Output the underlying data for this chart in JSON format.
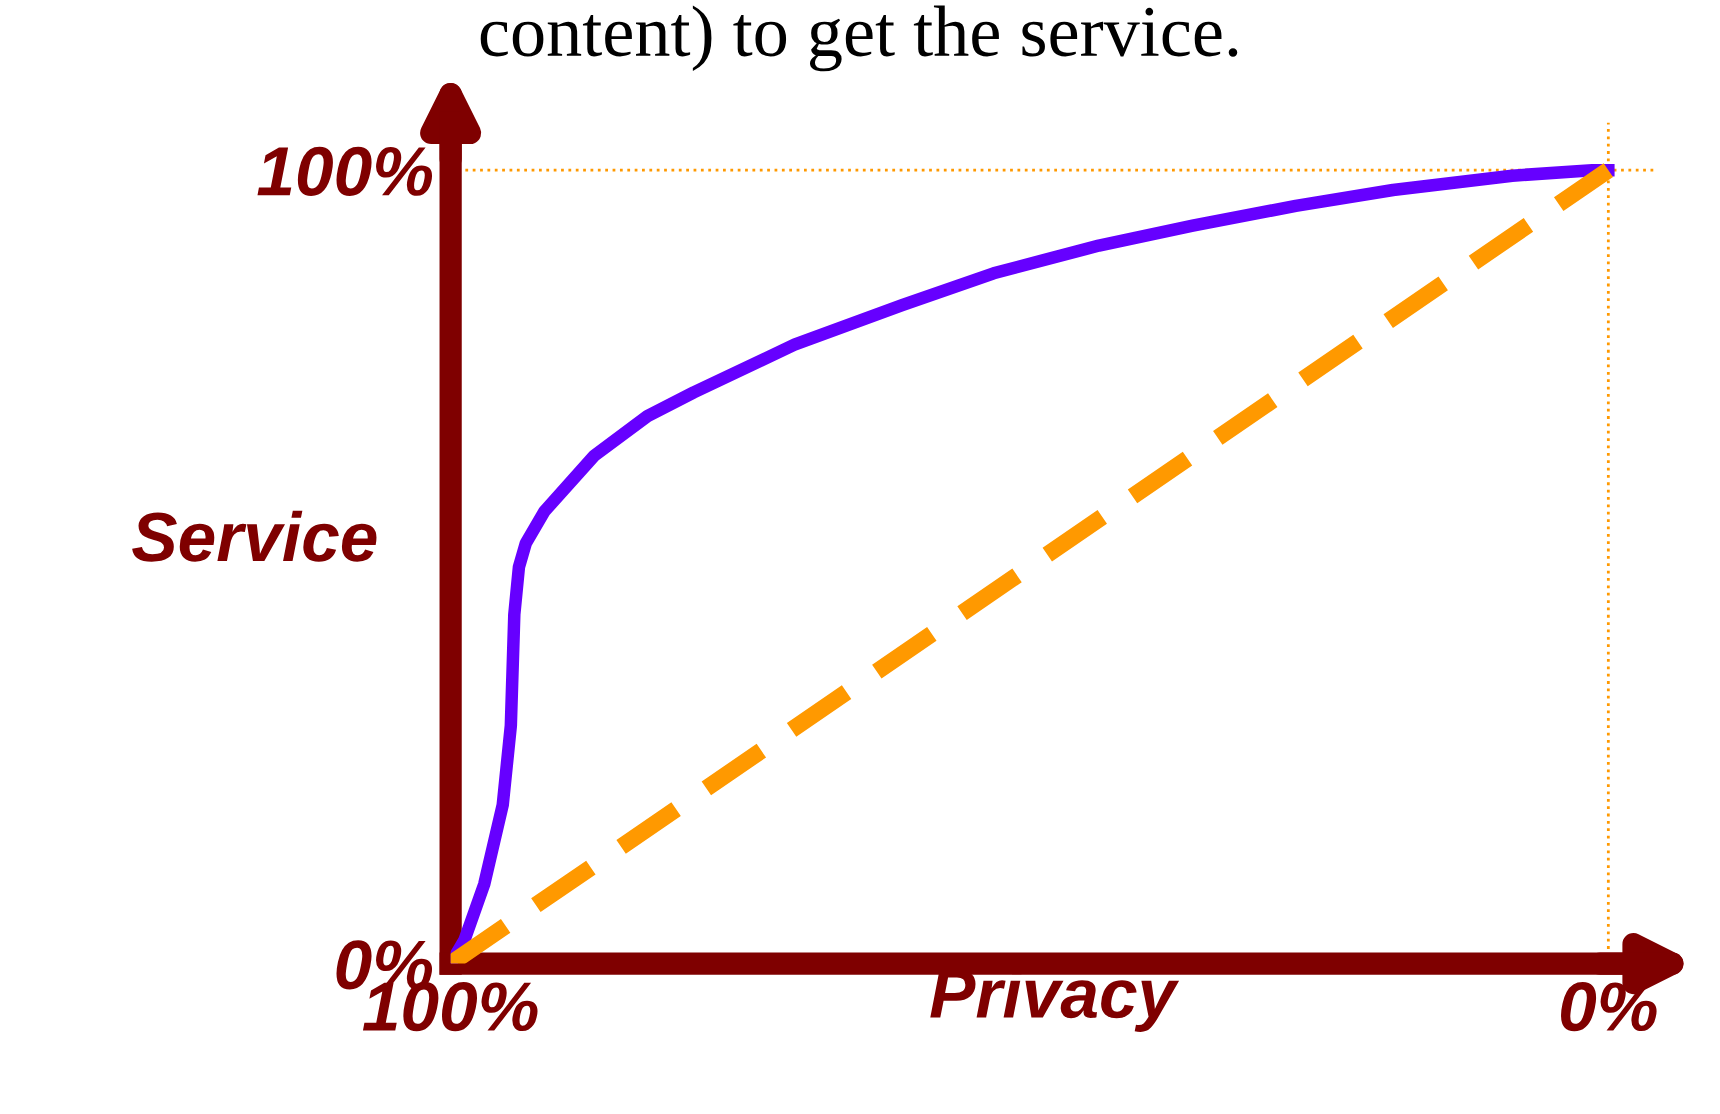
{
  "chart_data": {
    "type": "line",
    "xlabel": "Privacy",
    "ylabel": "Service",
    "annotations": [
      "content) to get the service."
    ],
    "xlim": [
      100,
      -4
    ],
    "ylim": [
      0,
      106
    ],
    "xticks": [
      {
        "value": 100,
        "label": "100%"
      },
      {
        "value": 0,
        "label": "0%"
      }
    ],
    "yticks": [
      {
        "value": 0,
        "label": "0%"
      },
      {
        "value": 100,
        "label": "100%"
      }
    ],
    "series": [
      {
        "color": "#6600ff",
        "line_style": "solid",
        "x": [
          100,
          98.8,
          97.1,
          95.5,
          94.8,
          94.5,
          94.1,
          93.5,
          91.9,
          87.6,
          83,
          79.0,
          70.3,
          61,
          53.1,
          44,
          35.9,
          27,
          18.6,
          8.3,
          1.4,
          0
        ],
        "values": [
          0,
          3,
          10,
          20,
          30,
          44,
          50,
          53,
          57,
          64,
          69,
          72,
          78,
          83,
          87,
          90.5,
          93,
          95.5,
          97.5,
          99.3,
          100,
          100
        ]
      },
      {
        "color": "#ff9900",
        "line_style": "dashed",
        "x": [
          100,
          0
        ],
        "values": [
          0,
          100
        ]
      }
    ],
    "ref_lines": [
      {
        "axis": "y",
        "value": 100,
        "color": "#ff9900",
        "line_style": "dotted"
      },
      {
        "axis": "x",
        "value": 0,
        "color": "#ff9900",
        "line_style": "dotted"
      }
    ],
    "grid": false,
    "legend": false,
    "marker": "none"
  }
}
